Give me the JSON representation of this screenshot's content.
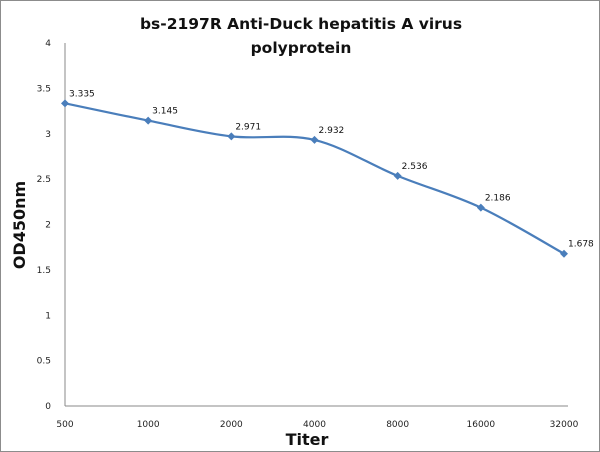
{
  "chart_data": {
    "type": "line",
    "title_lines": [
      "bs-2197R Anti-Duck hepatitis A virus",
      "polyprotein"
    ],
    "xlabel": "Titer",
    "ylabel": "OD450nm",
    "categories": [
      "500",
      "1000",
      "2000",
      "4000",
      "8000",
      "16000",
      "32000"
    ],
    "values": [
      3.335,
      3.145,
      2.971,
      2.932,
      2.536,
      2.186,
      1.678
    ],
    "data_labels": [
      "3.335",
      "3.145",
      "2.971",
      "2.932",
      "2.536",
      "2.186",
      "1.678"
    ],
    "ylim": [
      0,
      4
    ],
    "yticks": [
      "0",
      "0.5",
      "1",
      "1.5",
      "2",
      "2.5",
      "3",
      "3.5",
      "4"
    ],
    "grid": false,
    "legend": "none",
    "smooth": true,
    "marker": "diamond",
    "series_color": "#4a7ebb"
  }
}
